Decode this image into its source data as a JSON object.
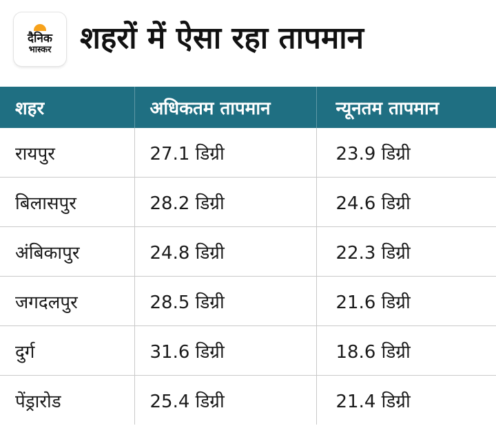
{
  "logo": {
    "line1": "दैनिक",
    "line2": "भास्कर",
    "accent": "#f7a21b"
  },
  "title": "शहरों में ऐसा रहा तापमान",
  "table": {
    "header_color": "#1f6f82",
    "headers": [
      "शहर",
      "अधिकतम तापमान",
      "न्यूनतम तापमान"
    ],
    "rows": [
      [
        "रायपुर",
        "27.1 डिग्री",
        "23.9 डिग्री"
      ],
      [
        "बिलासपुर",
        "28.2 डिग्री",
        "24.6 डिग्री"
      ],
      [
        "अंबिकापुर",
        "24.8 डिग्री",
        "22.3 डिग्री"
      ],
      [
        "जगदलपुर",
        "28.5 डिग्री",
        "21.6 डिग्री"
      ],
      [
        "दुर्ग",
        "31.6 डिग्री",
        "18.6 डिग्री"
      ],
      [
        "पेंड्रारोड",
        "25.4 डिग्री",
        "21.4 डिग्री"
      ]
    ]
  }
}
